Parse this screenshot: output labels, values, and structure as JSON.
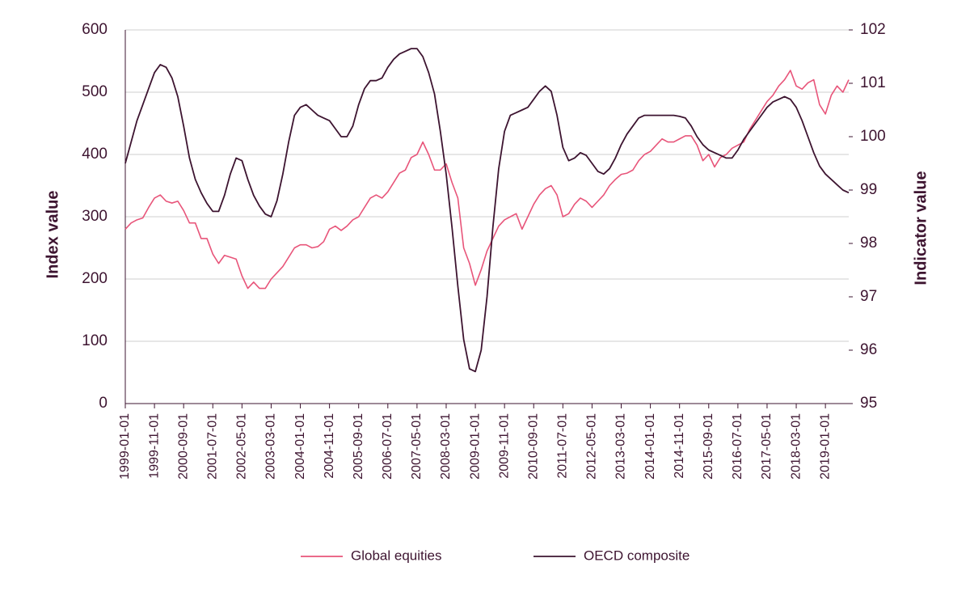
{
  "chart_data": {
    "type": "line",
    "categories": [
      "1999-01-01",
      null,
      null,
      null,
      null,
      "1999-11-01",
      null,
      null,
      null,
      null,
      "2000-09-01",
      null,
      null,
      null,
      null,
      "2001-07-01",
      null,
      null,
      null,
      null,
      "2002-05-01",
      null,
      null,
      null,
      null,
      "2003-03-01",
      null,
      null,
      null,
      null,
      "2004-01-01",
      null,
      null,
      null,
      null,
      "2004-11-01",
      null,
      null,
      null,
      null,
      "2005-09-01",
      null,
      null,
      null,
      null,
      "2006-07-01",
      null,
      null,
      null,
      null,
      "2007-05-01",
      null,
      null,
      null,
      null,
      "2008-03-01",
      null,
      null,
      null,
      null,
      "2009-01-01",
      null,
      null,
      null,
      null,
      "2009-11-01",
      null,
      null,
      null,
      null,
      "2010-09-01",
      null,
      null,
      null,
      null,
      "2011-07-01",
      null,
      null,
      null,
      null,
      "2012-05-01",
      null,
      null,
      null,
      null,
      "2013-03-01",
      null,
      null,
      null,
      null,
      "2014-01-01",
      null,
      null,
      null,
      null,
      "2014-11-01",
      null,
      null,
      null,
      null,
      "2015-09-01",
      null,
      null,
      null,
      null,
      "2016-07-01",
      null,
      null,
      null,
      null,
      "2017-05-01",
      null,
      null,
      null,
      null,
      "2018-03-01",
      null,
      null,
      null,
      null,
      "2019-01-01",
      null,
      null,
      null,
      null
    ],
    "series": [
      {
        "name": "Global equities",
        "color": "#e8557a",
        "values": [
          280,
          290,
          295,
          298,
          315,
          330,
          335,
          325,
          322,
          325,
          310,
          290,
          290,
          265,
          265,
          240,
          225,
          238,
          235,
          232,
          205,
          185,
          195,
          185,
          185,
          200,
          210,
          220,
          235,
          250,
          255,
          255,
          250,
          252,
          260,
          280,
          285,
          278,
          285,
          295,
          300,
          315,
          330,
          335,
          330,
          340,
          355,
          370,
          375,
          395,
          400,
          420,
          400,
          375,
          375,
          385,
          355,
          330,
          250,
          225,
          190,
          215,
          245,
          265,
          285,
          295,
          300,
          305,
          280,
          300,
          320,
          335,
          345,
          350,
          335,
          300,
          305,
          320,
          330,
          325,
          315,
          325,
          335,
          350,
          360,
          368,
          370,
          375,
          390,
          400,
          405,
          415,
          425,
          420,
          420,
          425,
          430,
          430,
          415,
          390,
          400,
          380,
          395,
          400,
          410,
          415,
          420,
          440,
          455,
          470,
          485,
          495,
          510,
          520,
          535,
          510,
          505,
          515,
          520,
          480,
          465,
          495,
          510,
          500,
          520
        ]
      },
      {
        "name": "OECD composite",
        "color": "#3d1430",
        "axis": "y2",
        "values": [
          99.5,
          99.9,
          100.3,
          100.6,
          100.9,
          101.2,
          101.35,
          101.3,
          101.1,
          100.75,
          100.2,
          99.6,
          99.2,
          98.95,
          98.75,
          98.6,
          98.6,
          98.9,
          99.3,
          99.6,
          99.55,
          99.2,
          98.9,
          98.7,
          98.55,
          98.5,
          98.8,
          99.3,
          99.9,
          100.4,
          100.55,
          100.6,
          100.5,
          100.4,
          100.35,
          100.3,
          100.15,
          100.0,
          100.0,
          100.2,
          100.6,
          100.9,
          101.05,
          101.05,
          101.1,
          101.3,
          101.45,
          101.55,
          101.6,
          101.65,
          101.65,
          101.5,
          101.2,
          100.8,
          100.1,
          99.3,
          98.3,
          97.2,
          96.2,
          95.65,
          95.6,
          96.0,
          97.0,
          98.3,
          99.4,
          100.1,
          100.4,
          100.45,
          100.5,
          100.55,
          100.7,
          100.85,
          100.95,
          100.85,
          100.4,
          99.8,
          99.55,
          99.6,
          99.7,
          99.65,
          99.5,
          99.35,
          99.3,
          99.4,
          99.6,
          99.85,
          100.05,
          100.2,
          100.35,
          100.4,
          100.4,
          100.4,
          100.4,
          100.4,
          100.4,
          100.38,
          100.35,
          100.2,
          100.0,
          99.85,
          99.75,
          99.7,
          99.65,
          99.6,
          99.6,
          99.75,
          99.95,
          100.1,
          100.25,
          100.4,
          100.55,
          100.65,
          100.7,
          100.75,
          100.7,
          100.55,
          100.3,
          100.0,
          99.7,
          99.45,
          99.3,
          99.2,
          99.1,
          99.0,
          98.95
        ]
      }
    ],
    "ylabel": "Index value",
    "y2label": "Indicator value",
    "ylim": [
      0,
      600
    ],
    "yticks": [
      0,
      100,
      200,
      300,
      400,
      500,
      600
    ],
    "y2lim": [
      95,
      102
    ],
    "y2ticks": [
      95,
      96,
      97,
      98,
      99,
      100,
      101,
      102
    ],
    "grid": true,
    "legend": "bottom"
  }
}
